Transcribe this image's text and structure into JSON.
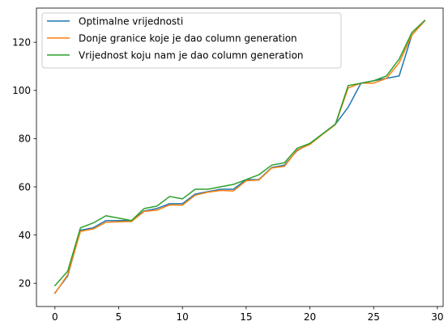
{
  "chart_data": {
    "type": "line",
    "title": "",
    "xlabel": "",
    "ylabel": "",
    "xlim": [
      -1.45,
      30.45
    ],
    "ylim": [
      10.35,
      134.15
    ],
    "xticks": [
      0,
      5,
      10,
      15,
      20,
      25,
      30
    ],
    "yticks": [
      20,
      40,
      60,
      80,
      100,
      120
    ],
    "grid": false,
    "legend": "top-left",
    "x": [
      0,
      1,
      2,
      3,
      4,
      5,
      6,
      7,
      8,
      9,
      10,
      11,
      12,
      13,
      14,
      15,
      16,
      17,
      18,
      19,
      20,
      21,
      22,
      23,
      24,
      25,
      26,
      27,
      28,
      29
    ],
    "series": [
      {
        "name": "Optimalne vrijednosti",
        "color": "#1f77b4",
        "values": [
          16,
          23,
          42,
          43,
          46,
          46,
          46,
          50,
          51,
          53,
          53,
          57,
          58,
          59,
          59,
          63,
          63,
          68,
          69,
          75,
          78,
          82,
          86,
          93,
          103,
          104,
          105,
          106,
          123,
          129
        ]
      },
      {
        "name": "Donje granice koje je dao column generation",
        "color": "#ff7f0e",
        "values": [
          15.8,
          23.5,
          41.5,
          42.5,
          45.3,
          45.5,
          45.6,
          49.8,
          50.3,
          52.5,
          52.4,
          56.5,
          57.8,
          58.5,
          58.3,
          62.5,
          62.8,
          67.8,
          68.5,
          75.3,
          77.6,
          81.8,
          85.8,
          101,
          103,
          103,
          105,
          111.5,
          123,
          128.8
        ]
      },
      {
        "name": "Vrijednost koju nam je dao column generation",
        "color": "#2ca02c",
        "values": [
          19,
          25,
          43,
          45,
          48,
          47,
          46,
          51,
          52,
          56,
          55,
          59,
          59,
          60,
          61,
          63,
          65,
          69,
          70,
          76,
          78,
          82,
          86,
          102,
          103,
          104,
          106,
          113,
          124,
          129
        ]
      }
    ]
  }
}
